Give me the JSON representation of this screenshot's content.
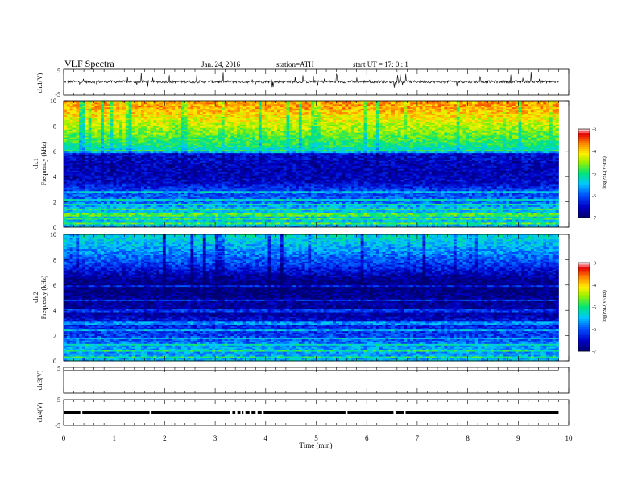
{
  "header": {
    "title": "VLF  Spectra",
    "date": "Jan. 24, 2016",
    "station": "station=ATH",
    "start": "start  UT  =    17: 0  : 1"
  },
  "chart_data": [
    {
      "panel": "ch1-waveform",
      "type": "line",
      "ylabel": "ch.1(V)",
      "yticks": [
        "5",
        "-5"
      ],
      "ylim": [
        -5,
        5
      ],
      "xlim": [
        0,
        10
      ],
      "data_end_min": 9.8,
      "baseline_v": 0.2,
      "noise_amp_v": 1.0
    },
    {
      "panel": "ch1-spectrogram",
      "type": "heatmap",
      "ylabel_line1": "ch.1",
      "ylabel_line2": "Frequency  (kHz)",
      "yticks": [
        "0",
        "2",
        "4",
        "6",
        "8",
        "10"
      ],
      "ylim_khz": [
        0,
        10
      ],
      "xlim_min": [
        0,
        10
      ],
      "data_end_min": 9.8,
      "z_range_logpsd": [
        -7,
        -3
      ],
      "profile": {
        "freq_khz": [
          0,
          0.3,
          0.6,
          1.0,
          1.5,
          2.0,
          2.5,
          3.0,
          3.5,
          4.0,
          4.5,
          5.0,
          5.5,
          5.9,
          6.1,
          6.5,
          7.0,
          7.5,
          8.0,
          8.5,
          9.0,
          9.5,
          10.0
        ],
        "log_psd": [
          -5.6,
          -5.4,
          -5.5,
          -5.4,
          -5.5,
          -5.9,
          -6.0,
          -6.1,
          -6.5,
          -6.6,
          -6.6,
          -6.6,
          -6.5,
          -6.4,
          -5.3,
          -5.0,
          -4.8,
          -4.6,
          -4.4,
          -4.2,
          -4.0,
          -3.8,
          -3.8
        ]
      },
      "lines_khz": [
        0.3,
        0.7,
        1.0,
        1.4,
        1.8,
        2.2,
        2.8,
        6.0
      ],
      "colorbar": {
        "ticks": [
          "-3",
          "-4",
          "-5",
          "-6",
          "-7"
        ],
        "label": "log(PSD(V²/Hz)"
      }
    },
    {
      "panel": "ch2-spectrogram",
      "type": "heatmap",
      "ylabel_line1": "ch.2",
      "ylabel_line2": "Frequency  (kHz)",
      "yticks": [
        "0",
        "2",
        "4",
        "6",
        "8",
        "10"
      ],
      "ylim_khz": [
        0,
        10
      ],
      "xlim_min": [
        0,
        10
      ],
      "data_end_min": 9.8,
      "z_range_logpsd": [
        -7,
        -3
      ],
      "profile": {
        "freq_khz": [
          0,
          0.3,
          0.6,
          1.0,
          1.5,
          2.0,
          2.5,
          3.0,
          3.5,
          4.0,
          4.5,
          5.0,
          5.5,
          6.0,
          6.5,
          7.0,
          7.5,
          8.0,
          8.5,
          9.0,
          9.5,
          10.0
        ],
        "log_psd": [
          -5.5,
          -5.6,
          -5.7,
          -5.6,
          -5.9,
          -6.1,
          -6.2,
          -6.3,
          -6.6,
          -6.8,
          -6.7,
          -6.8,
          -6.9,
          -6.9,
          -6.8,
          -6.5,
          -6.2,
          -6.0,
          -5.8,
          -5.6,
          -5.4,
          -5.3
        ]
      },
      "lines_khz": [
        0.3,
        0.8,
        1.3,
        1.8,
        2.4,
        3.0,
        4.0,
        4.8,
        5.9
      ],
      "colorbar": {
        "ticks": [
          "-3",
          "-4",
          "-5",
          "-6",
          "-7"
        ],
        "label": "log(PSD(V²/Hz)"
      }
    },
    {
      "panel": "ch3-waveform",
      "type": "line",
      "ylabel": "ch.3(V)",
      "yticks": [
        "5"
      ],
      "ylim": [
        -5,
        5
      ],
      "xlim": [
        0,
        10
      ],
      "data_end_min": 9.8,
      "baseline_v": 0
    },
    {
      "panel": "ch4-waveform",
      "type": "line",
      "ylabel": "ch.4(V)",
      "yticks": [
        "5",
        "-5"
      ],
      "ylim": [
        -5,
        5
      ],
      "xlim": [
        0,
        10
      ],
      "data_end_min": 9.8,
      "baseline_v": 0,
      "gaps_min": [
        0.35,
        1.72,
        3.32,
        3.42,
        3.52,
        3.58,
        3.7,
        3.82,
        3.94,
        5.6,
        6.55,
        6.75
      ]
    }
  ],
  "xaxis": {
    "label": "Time  (min)",
    "ticks": [
      "0",
      "1",
      "2",
      "3",
      "4",
      "5",
      "6",
      "7",
      "8",
      "9",
      "10"
    ],
    "range": [
      0,
      10
    ]
  }
}
